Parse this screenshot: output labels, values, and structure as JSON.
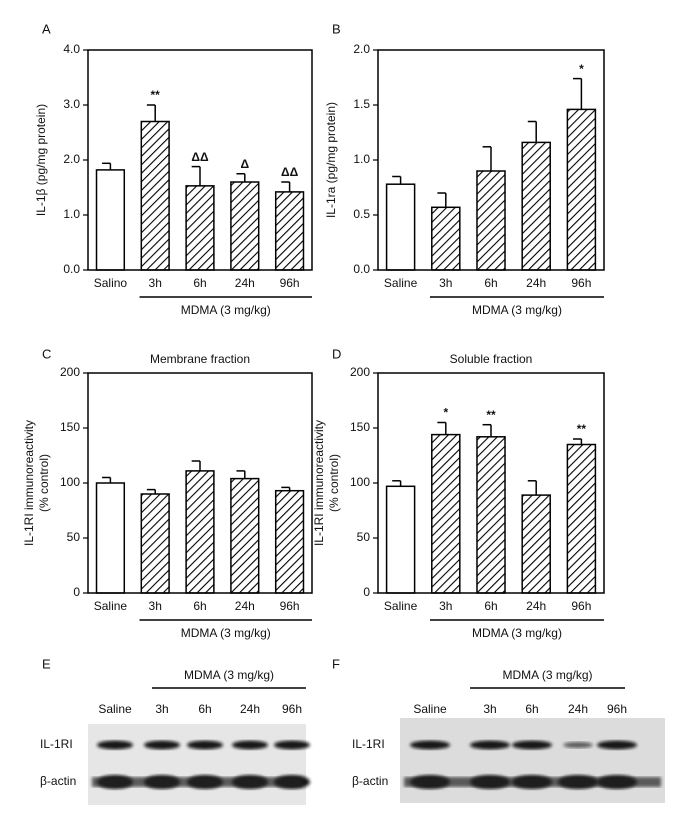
{
  "chart_data": [
    {
      "type": "bar",
      "panel": "A",
      "ylabel": [
        "IL-1β (pg/mg protein)"
      ],
      "group_label": "MDMA (3 mg/kg)",
      "categories": [
        "Salino",
        "3h",
        "6h",
        "24h",
        "96h"
      ],
      "values": [
        1.82,
        2.7,
        1.53,
        1.6,
        1.42
      ],
      "errors": [
        0.12,
        0.3,
        0.35,
        0.15,
        0.18
      ],
      "annotations": [
        null,
        "**",
        "ΔΔ",
        "Δ",
        "ΔΔ"
      ],
      "hatched": [
        false,
        true,
        true,
        true,
        true
      ],
      "color": "#000000",
      "ylim": [
        0,
        4
      ],
      "yticks": [
        {
          "value": 0,
          "label": "0.0"
        },
        {
          "value": 1,
          "label": "1.0"
        },
        {
          "value": 2,
          "label": "2.0"
        },
        {
          "value": 3,
          "label": "3.0"
        },
        {
          "value": 4,
          "label": "4.0"
        }
      ]
    },
    {
      "type": "bar",
      "panel": "B",
      "ylabel": [
        "IL-1ra (pg/mg protein)"
      ],
      "group_label": "MDMA (3 mg/kg)",
      "categories": [
        "Saline",
        "3h",
        "6h",
        "24h",
        "96h"
      ],
      "values": [
        0.78,
        0.57,
        0.9,
        1.16,
        1.46
      ],
      "errors": [
        0.07,
        0.13,
        0.22,
        0.19,
        0.28
      ],
      "annotations": [
        null,
        null,
        null,
        null,
        "*"
      ],
      "hatched": [
        false,
        true,
        true,
        true,
        true
      ],
      "color": "#000000",
      "ylim": [
        0,
        2
      ],
      "yticks": [
        {
          "value": 0,
          "label": "0.0"
        },
        0.5,
        {
          "value": 1,
          "label": "1.0"
        },
        1.5,
        {
          "value": 2,
          "label": "2.0"
        }
      ]
    },
    {
      "type": "bar",
      "panel": "C",
      "title": "Membrane fraction",
      "ylabel": [
        "IL-1RI immunoreactivity",
        "(% control)"
      ],
      "group_label": "MDMA (3 mg/kg)",
      "categories": [
        "Saline",
        "3h",
        "6h",
        "24h",
        "96h"
      ],
      "values": [
        100,
        90,
        111,
        104,
        93
      ],
      "errors": [
        5,
        4,
        9,
        7,
        3
      ],
      "annotations": [
        null,
        null,
        null,
        null,
        null
      ],
      "hatched": [
        false,
        true,
        true,
        true,
        true
      ],
      "color": "#000000",
      "ylim": [
        0,
        200
      ],
      "yticks": [
        0,
        50,
        100,
        150,
        200
      ]
    },
    {
      "type": "bar",
      "panel": "D",
      "title": "Soluble fraction",
      "ylabel": [
        "IL-1RI immunoreactivity",
        "(% control)"
      ],
      "group_label": "MDMA (3 mg/kg)",
      "categories": [
        "Saline",
        "3h",
        "6h",
        "24h",
        "96h"
      ],
      "values": [
        97,
        144,
        142,
        89,
        135
      ],
      "errors": [
        5,
        11,
        11,
        13,
        5
      ],
      "annotations": [
        null,
        "*",
        "**",
        null,
        "**"
      ],
      "hatched": [
        false,
        true,
        true,
        true,
        true
      ],
      "color": "#000000",
      "ylim": [
        0,
        200
      ],
      "yticks": [
        0,
        50,
        100,
        150,
        200
      ]
    }
  ],
  "blots": [
    {
      "panel": "E",
      "group_label": "MDMA (3 mg/kg)",
      "lanes": [
        "Saline",
        "3h",
        "6h",
        "24h",
        "96h"
      ],
      "rows": [
        "IL-1RI",
        "β-actin"
      ]
    },
    {
      "panel": "F",
      "group_label": "MDMA (3 mg/kg)",
      "lanes": [
        "Saline",
        "3h",
        "6h",
        "24h",
        "96h"
      ],
      "rows": [
        "IL-1RI",
        "β-actin"
      ]
    }
  ]
}
